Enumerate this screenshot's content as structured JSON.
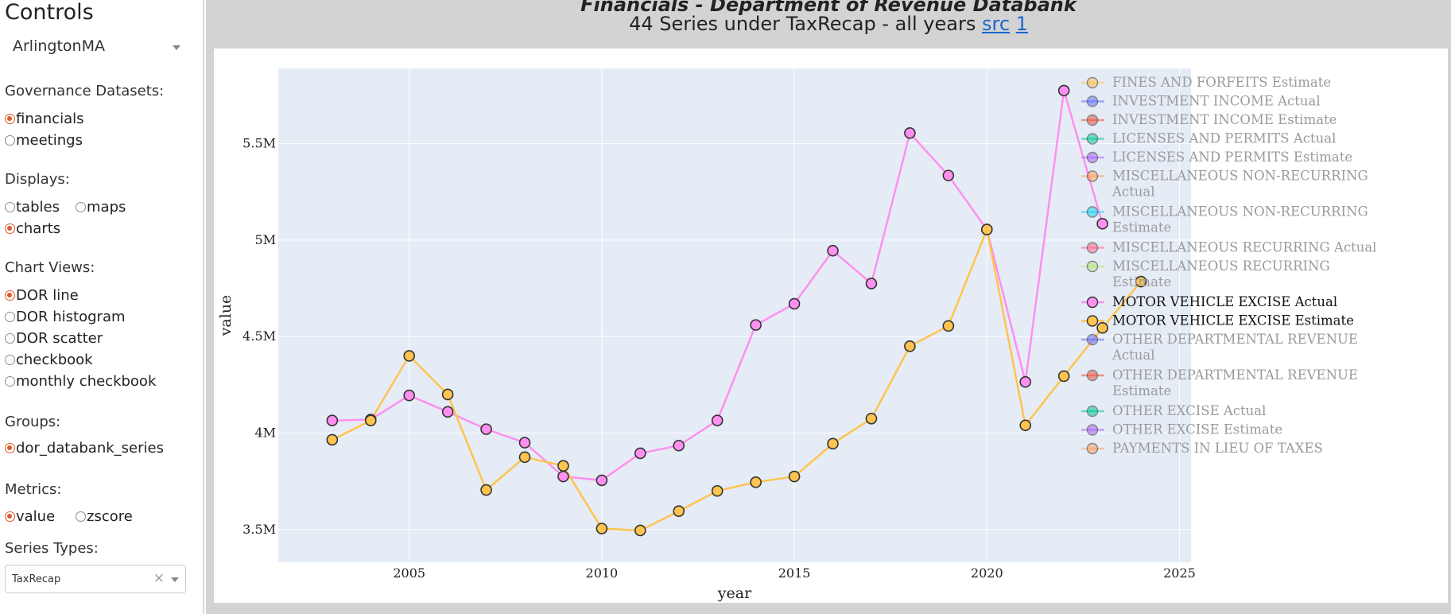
{
  "sidebar": {
    "title": "Controls",
    "town": "ArlingtonMA",
    "governance_label": "Governance Datasets:",
    "governance": [
      {
        "label": "financials",
        "on": true
      },
      {
        "label": "meetings",
        "on": false
      }
    ],
    "displays_label": "Displays:",
    "displays": [
      {
        "label": "tables",
        "on": false
      },
      {
        "label": "maps",
        "on": false
      },
      {
        "label": "charts",
        "on": true
      }
    ],
    "chart_views_label": "Chart Views:",
    "chart_views": [
      {
        "label": "DOR line",
        "on": true
      },
      {
        "label": "DOR histogram",
        "on": false
      },
      {
        "label": "DOR scatter",
        "on": false
      },
      {
        "label": "checkbook",
        "on": false
      },
      {
        "label": "monthly checkbook",
        "on": false
      }
    ],
    "groups_label": "Groups:",
    "groups": [
      {
        "label": "dor_databank_series",
        "on": true
      }
    ],
    "metrics_label": "Metrics:",
    "metrics": [
      {
        "label": "value",
        "on": true
      },
      {
        "label": "zscore",
        "on": false
      }
    ],
    "series_types_label": "Series Types:",
    "series_type_value": "TaxRecap",
    "clear_glyph": "×"
  },
  "header": {
    "title": "Financials - Department of Revenue Databank",
    "subtitle": "44 Series under TaxRecap - all years",
    "link_src": "src",
    "link_1": "1"
  },
  "chart_data": {
    "type": "line",
    "title": "",
    "xlabel": "year",
    "ylabel": "value",
    "xlim": [
      2001.6,
      2025.3
    ],
    "ylim": [
      3330000,
      5890000
    ],
    "x_ticks": [
      2005,
      2010,
      2015,
      2020,
      2025
    ],
    "y_ticks": [
      3500000,
      4000000,
      4500000,
      5000000,
      5500000
    ],
    "y_tick_labels": [
      "3.5M",
      "4M",
      "4.5M",
      "5M",
      "5.5M"
    ],
    "grid": true,
    "legend_placement": "right",
    "series": [
      {
        "name": "MOTOR VEHICLE EXCISE Actual",
        "color": "#ff8ff0",
        "x": [
          2003,
          2004,
          2005,
          2006,
          2007,
          2008,
          2009,
          2010,
          2011,
          2012,
          2013,
          2014,
          2015,
          2016,
          2017,
          2018,
          2019,
          2020,
          2021,
          2022,
          2023
        ],
        "values": [
          4065000,
          4070000,
          4195000,
          4110000,
          4020000,
          3950000,
          3775000,
          3755000,
          3895000,
          3935000,
          4065000,
          4560000,
          4670000,
          4945000,
          4775000,
          5555000,
          5335000,
          5055000,
          4265000,
          5775000,
          5085000
        ]
      },
      {
        "name": "MOTOR VEHICLE EXCISE Estimate",
        "color": "#fec44f",
        "x": [
          2003,
          2004,
          2005,
          2006,
          2007,
          2008,
          2009,
          2010,
          2011,
          2012,
          2013,
          2014,
          2015,
          2016,
          2017,
          2018,
          2019,
          2020,
          2021,
          2022,
          2023,
          2024
        ],
        "values": [
          3965000,
          4065000,
          4400000,
          4200000,
          3705000,
          3875000,
          3830000,
          3505000,
          3495000,
          3595000,
          3700000,
          3745000,
          3775000,
          3945000,
          4075000,
          4450000,
          4555000,
          5055000,
          4040000,
          4295000,
          4545000,
          4785000
        ]
      }
    ],
    "legend": [
      {
        "text": "FINES AND FORFEITS Estimate",
        "color": "#fec44f",
        "active": false
      },
      {
        "text": "INVESTMENT INCOME Actual",
        "color": "#636efa",
        "active": false
      },
      {
        "text": "INVESTMENT INCOME Estimate",
        "color": "#ef553b",
        "active": false
      },
      {
        "text": "LICENSES AND PERMITS Actual",
        "color": "#00cc96",
        "active": false
      },
      {
        "text": "LICENSES AND PERMITS Estimate",
        "color": "#ab63fa",
        "active": false
      },
      {
        "text": "MISCELLANEOUS NON-RECURRING Actual",
        "color": "#ffa15a",
        "active": false
      },
      {
        "text": "MISCELLANEOUS NON-RECURRING Estimate",
        "color": "#19d3f3",
        "active": false
      },
      {
        "text": "MISCELLANEOUS RECURRING Actual",
        "color": "#ff6692",
        "active": false
      },
      {
        "text": "MISCELLANEOUS RECURRING Estimate",
        "color": "#b6e880",
        "active": false
      },
      {
        "text": "MOTOR VEHICLE EXCISE Actual",
        "color": "#ff8ff0",
        "active": true
      },
      {
        "text": "MOTOR VEHICLE EXCISE Estimate",
        "color": "#fec44f",
        "active": true
      },
      {
        "text": "OTHER DEPARTMENTAL REVENUE Actual",
        "color": "#636efa",
        "active": false
      },
      {
        "text": "OTHER DEPARTMENTAL REVENUE Estimate",
        "color": "#ef553b",
        "active": false
      },
      {
        "text": "OTHER EXCISE Actual",
        "color": "#00cc96",
        "active": false
      },
      {
        "text": "OTHER EXCISE Estimate",
        "color": "#ab63fa",
        "active": false
      },
      {
        "text": "PAYMENTS IN LIEU OF TAXES",
        "color": "#ffa15a",
        "active": false
      }
    ]
  }
}
